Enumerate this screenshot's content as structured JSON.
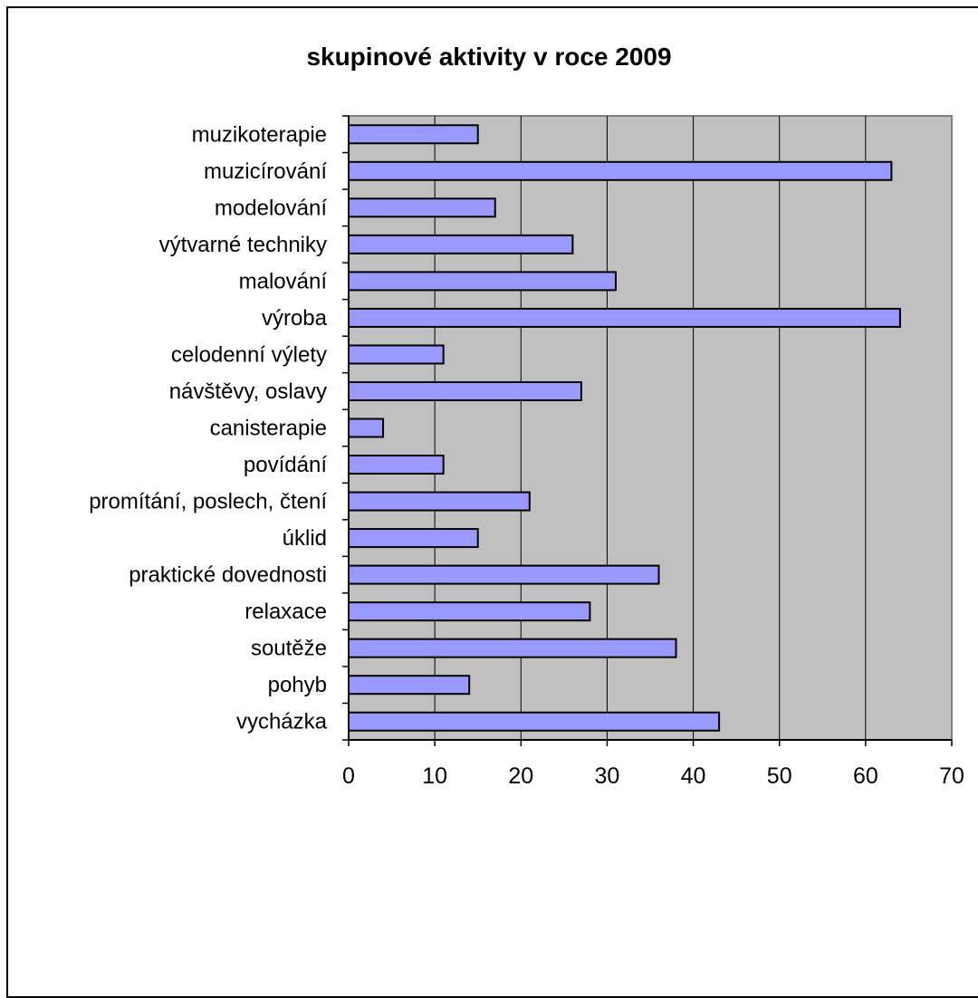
{
  "chart_data": {
    "type": "bar",
    "orientation": "horizontal",
    "title": "skupinové aktivity v roce 2009",
    "xlabel": "",
    "ylabel": "",
    "categories": [
      "muzikoterapie",
      "muzicírování",
      "modelování",
      "výtvarné techniky",
      "malování",
      "výroba",
      "celodenní výlety",
      "návštěvy, oslavy",
      "canisterapie",
      "povídání",
      "promítání, poslech, čtení",
      "úklid",
      "praktické dovednosti",
      "relaxace",
      "soutěže",
      "pohyb",
      "vycházka"
    ],
    "values": [
      15,
      63,
      17,
      26,
      31,
      64,
      11,
      27,
      4,
      11,
      21,
      15,
      36,
      28,
      38,
      14,
      43
    ],
    "xlim": [
      0,
      70
    ],
    "xticks": [
      "0",
      "10",
      "20",
      "30",
      "40",
      "50",
      "60",
      "70"
    ],
    "grid": "vertical",
    "legend": "none",
    "colors": {
      "bar_fill": "#9999ff",
      "bar_stroke": "#000000",
      "plot_background": "#c0c0c0",
      "gridline": "#000000"
    }
  }
}
